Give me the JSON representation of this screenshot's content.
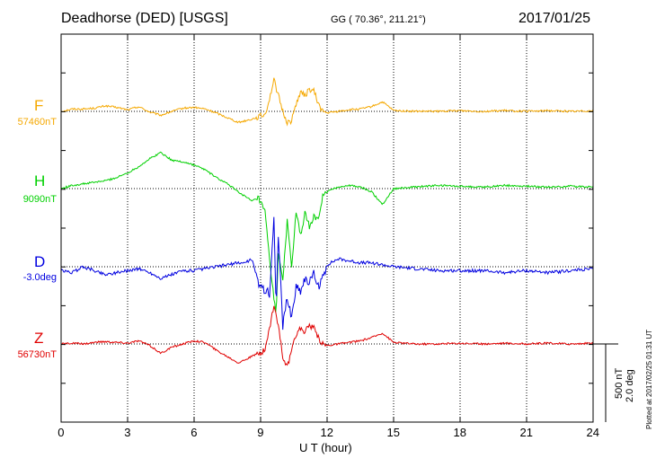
{
  "header": {
    "station": "Deadhorse (DED)  [USGS]",
    "coords": "GG ( 70.36°, 211.21°)",
    "date": "2017/01/25"
  },
  "footer": {
    "xlabel": "U T (hour)",
    "plotted": "Plotted at 2017/02/25 01:31  UT"
  },
  "scale": {
    "nt": "500 nT",
    "deg": "2.0 deg"
  },
  "chart_data": {
    "type": "line",
    "title": "Deadhorse (DED)  [USGS]",
    "xlabel": "U T (hour)",
    "ylabel": "",
    "xlim": [
      0,
      24
    ],
    "xticks": [
      "0",
      "3",
      "6",
      "9",
      "12",
      "15",
      "18",
      "21",
      "24"
    ],
    "grid": true,
    "scale_bar": "500 nT / 2.0 deg",
    "series": [
      {
        "name": "F",
        "baseline_label": "57460nT",
        "color": "#f5a800",
        "x": [
          0,
          0.5,
          1,
          1.5,
          2,
          2.5,
          3,
          3.5,
          4,
          4.5,
          5,
          5.5,
          6,
          6.5,
          7,
          7.5,
          8,
          8.3,
          8.6,
          8.9,
          9.2,
          9.4,
          9.6,
          9.7,
          9.8,
          10,
          10.2,
          10.4,
          10.6,
          10.8,
          11,
          11.2,
          11.4,
          11.6,
          11.8,
          12,
          12.5,
          13,
          13.5,
          14,
          14.5,
          15,
          16,
          17,
          18,
          19,
          20,
          21,
          22,
          23,
          24
        ],
        "values": [
          0,
          15,
          15,
          20,
          35,
          25,
          10,
          30,
          -5,
          -25,
          0,
          20,
          25,
          15,
          -10,
          -40,
          -70,
          -60,
          -50,
          -35,
          -20,
          80,
          200,
          150,
          100,
          0,
          -70,
          -60,
          50,
          120,
          100,
          140,
          130,
          50,
          0,
          -10,
          0,
          10,
          15,
          30,
          60,
          5,
          0,
          0,
          5,
          0,
          5,
          0,
          5,
          0,
          5
        ]
      },
      {
        "name": "H",
        "baseline_label": "9090nT",
        "color": "#00d000",
        "x": [
          0,
          0.5,
          1,
          1.5,
          2,
          2.5,
          3,
          3.5,
          4,
          4.5,
          5,
          5.5,
          6,
          6.5,
          7,
          7.5,
          8,
          8.3,
          8.6,
          8.9,
          9.2,
          9.4,
          9.6,
          9.7,
          9.8,
          10,
          10.2,
          10.4,
          10.6,
          10.8,
          11,
          11.2,
          11.4,
          11.6,
          11.8,
          12,
          12.5,
          13,
          13.5,
          14,
          14.5,
          15,
          16,
          17,
          18,
          19,
          20,
          21,
          22,
          23,
          24
        ],
        "values": [
          0,
          20,
          30,
          40,
          50,
          70,
          100,
          140,
          190,
          230,
          180,
          170,
          150,
          120,
          70,
          30,
          -20,
          -50,
          -80,
          -60,
          -150,
          -450,
          -700,
          -800,
          -400,
          -600,
          -200,
          -500,
          -150,
          -300,
          -160,
          -240,
          -180,
          -200,
          -50,
          -20,
          10,
          20,
          10,
          -20,
          -100,
          0,
          10,
          20,
          15,
          10,
          20,
          15,
          10,
          15,
          10
        ]
      },
      {
        "name": "D",
        "baseline_label": "-3.0deg",
        "color": "#0000e0",
        "x": [
          0,
          0.5,
          1,
          1.5,
          2,
          2.5,
          3,
          3.5,
          4,
          4.5,
          5,
          5.5,
          6,
          6.5,
          7,
          7.5,
          8,
          8.3,
          8.6,
          8.9,
          9.2,
          9.4,
          9.6,
          9.7,
          9.8,
          10,
          10.2,
          10.4,
          10.6,
          10.8,
          11,
          11.2,
          11.4,
          11.6,
          11.8,
          12,
          12.5,
          13,
          13.5,
          14,
          14.5,
          15,
          16,
          17,
          18,
          19,
          20,
          21,
          22,
          23,
          24
        ],
        "values": [
          -0.1,
          -0.15,
          0,
          -0.1,
          -0.2,
          -0.15,
          -0.1,
          -0.05,
          -0.15,
          -0.3,
          -0.2,
          -0.1,
          -0.1,
          -0.05,
          0,
          0.05,
          0.1,
          0.1,
          0.2,
          -0.4,
          -0.6,
          -0.7,
          1.2,
          -1.0,
          0.8,
          -1.5,
          -0.8,
          -1.3,
          -0.5,
          -0.6,
          -0.3,
          -0.4,
          -0.2,
          -0.5,
          -0.3,
          0.05,
          0.2,
          0.15,
          0.1,
          0.1,
          0.05,
          0,
          -0.05,
          -0.1,
          -0.1,
          -0.1,
          -0.15,
          -0.1,
          -0.15,
          -0.1,
          -0.05
        ]
      },
      {
        "name": "Z",
        "baseline_label": "56730nT",
        "color": "#e00000",
        "x": [
          0,
          0.5,
          1,
          1.5,
          2,
          2.5,
          3,
          3.5,
          4,
          4.5,
          5,
          5.5,
          6,
          6.5,
          7,
          7.5,
          8,
          8.3,
          8.6,
          8.9,
          9.2,
          9.4,
          9.6,
          9.7,
          9.8,
          10,
          10.2,
          10.4,
          10.6,
          10.8,
          11,
          11.2,
          11.4,
          11.6,
          11.8,
          12,
          12.5,
          13,
          13.5,
          14,
          14.5,
          15,
          16,
          17,
          18,
          19,
          20,
          21,
          22,
          23,
          24
        ],
        "values": [
          0,
          5,
          0,
          10,
          15,
          10,
          5,
          20,
          -10,
          -60,
          -20,
          0,
          20,
          10,
          -40,
          -80,
          -120,
          -100,
          -80,
          -60,
          -40,
          100,
          250,
          180,
          120,
          -80,
          -150,
          -50,
          60,
          100,
          80,
          120,
          100,
          40,
          0,
          -10,
          0,
          10,
          20,
          40,
          70,
          10,
          0,
          0,
          5,
          0,
          5,
          0,
          5,
          0,
          5
        ]
      }
    ]
  }
}
